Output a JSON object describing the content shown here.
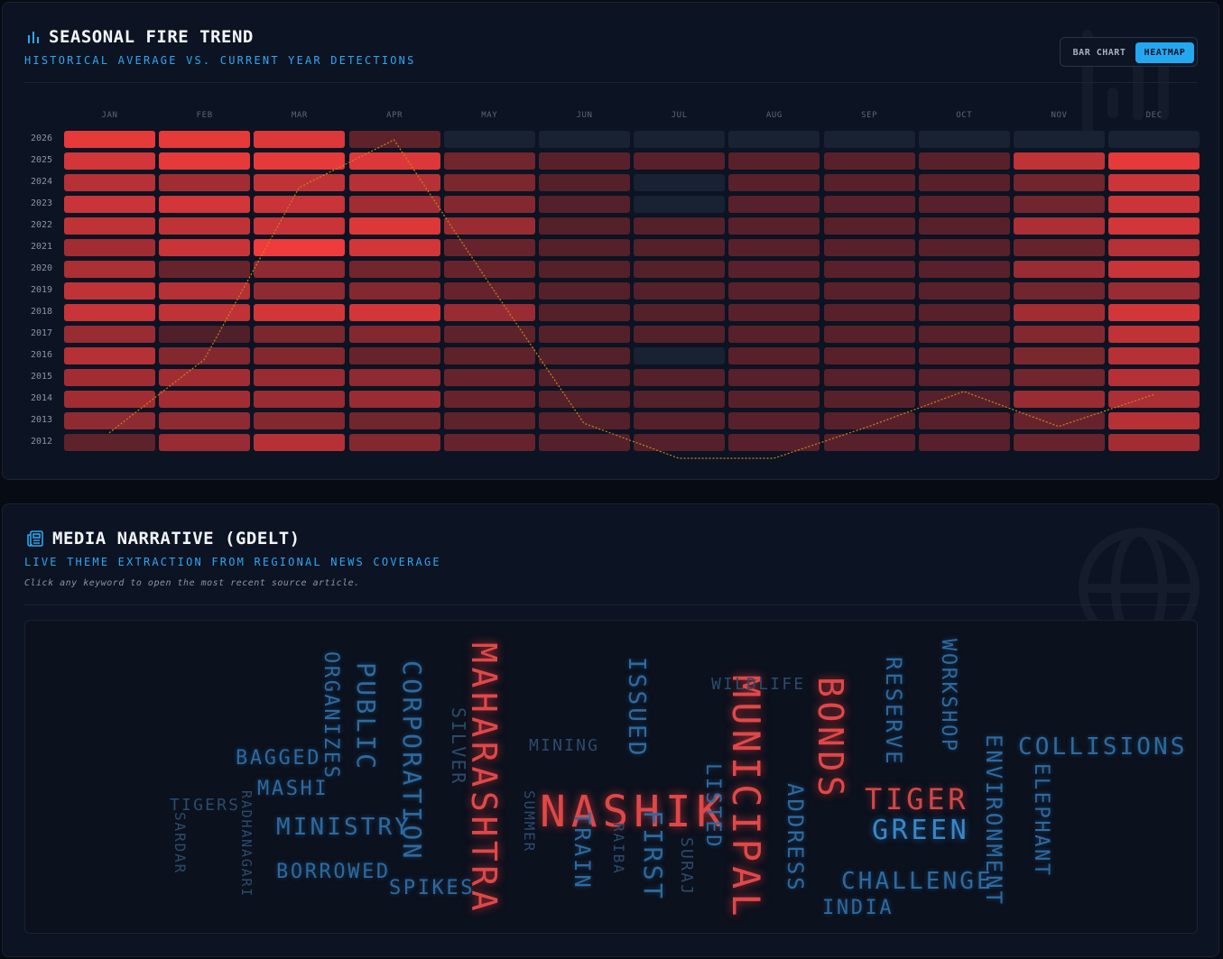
{
  "fire": {
    "title": "SEASONAL FIRE TREND",
    "subtitle": "HISTORICAL AVERAGE VS. CURRENT YEAR DETECTIONS",
    "toggle": {
      "bar_chart": "BAR CHART",
      "heatmap": "HEATMAP",
      "active": "HEATMAP"
    },
    "colors": {
      "accent": "#23a8f0",
      "fire": "#ef3b3b",
      "empty": "#182232",
      "trend_line": "#c8861b"
    }
  },
  "chart_data": {
    "type": "heatmap",
    "x": [
      "JAN",
      "FEB",
      "MAR",
      "APR",
      "MAY",
      "JUN",
      "JUL",
      "AUG",
      "SEP",
      "OCT",
      "NOV",
      "DEC"
    ],
    "y": [
      "2026",
      "2025",
      "2024",
      "2023",
      "2022",
      "2021",
      "2020",
      "2019",
      "2018",
      "2017",
      "2016",
      "2015",
      "2014",
      "2013",
      "2012"
    ],
    "intensity": [
      [
        0.95,
        0.95,
        0.9,
        0.25,
        0,
        0,
        0,
        0,
        0,
        0,
        0,
        0
      ],
      [
        0.85,
        0.95,
        0.95,
        0.9,
        0.35,
        0.22,
        0.22,
        0.22,
        0.22,
        0.22,
        0.75,
        0.95
      ],
      [
        0.7,
        0.6,
        0.75,
        0.7,
        0.4,
        0.2,
        0,
        0.22,
        0.22,
        0.22,
        0.35,
        0.82
      ],
      [
        0.8,
        0.85,
        0.8,
        0.6,
        0.45,
        0.2,
        0,
        0.22,
        0.22,
        0.22,
        0.35,
        0.82
      ],
      [
        0.75,
        0.75,
        0.8,
        0.9,
        0.55,
        0.2,
        0.2,
        0.22,
        0.22,
        0.22,
        0.65,
        0.85
      ],
      [
        0.6,
        0.8,
        1.0,
        0.85,
        0.3,
        0.2,
        0.2,
        0.22,
        0.22,
        0.22,
        0.3,
        0.7
      ],
      [
        0.65,
        0.3,
        0.5,
        0.35,
        0.3,
        0.2,
        0.2,
        0.22,
        0.22,
        0.22,
        0.55,
        0.8
      ],
      [
        0.75,
        0.7,
        0.5,
        0.45,
        0.3,
        0.2,
        0.2,
        0.22,
        0.22,
        0.22,
        0.35,
        0.55
      ],
      [
        0.8,
        0.75,
        0.85,
        0.85,
        0.55,
        0.2,
        0.2,
        0.22,
        0.22,
        0.22,
        0.6,
        0.85
      ],
      [
        0.55,
        0.18,
        0.4,
        0.45,
        0.25,
        0.2,
        0.2,
        0.22,
        0.22,
        0.22,
        0.45,
        0.75
      ],
      [
        0.7,
        0.45,
        0.45,
        0.3,
        0.25,
        0.2,
        0,
        0.22,
        0.22,
        0.22,
        0.4,
        0.7
      ],
      [
        0.6,
        0.6,
        0.55,
        0.5,
        0.3,
        0.2,
        0.2,
        0.22,
        0.22,
        0.22,
        0.35,
        0.7
      ],
      [
        0.6,
        0.6,
        0.55,
        0.55,
        0.3,
        0.2,
        0.2,
        0.22,
        0.22,
        0.22,
        0.55,
        0.65
      ],
      [
        0.5,
        0.5,
        0.45,
        0.35,
        0.25,
        0.2,
        0.2,
        0.22,
        0.22,
        0.22,
        0.3,
        0.7
      ],
      [
        0.25,
        0.55,
        0.7,
        0.45,
        0.3,
        0.2,
        0.2,
        0.22,
        0.22,
        0.22,
        0.3,
        0.6
      ]
    ],
    "trend": {
      "values": [
        0.08,
        0.31,
        0.85,
        1.0,
        0.55,
        0.11,
        0.0,
        0.0,
        0.1,
        0.21,
        0.1,
        0.2
      ]
    }
  },
  "media": {
    "title": "MEDIA NARRATIVE (GDELT)",
    "subtitle": "LIVE THEME EXTRACTION FROM REGIONAL NEWS COVERAGE",
    "note": "Click any keyword to open the most recent source article.",
    "words": [
      {
        "text": "MAHARASHTRA"
      },
      {
        "text": "NASHIK"
      },
      {
        "text": "MUNICIPAL"
      },
      {
        "text": "BONDS"
      },
      {
        "text": "TIGER"
      },
      {
        "text": "GREEN"
      },
      {
        "text": "COLLISIONS"
      },
      {
        "text": "CHALLENGE"
      },
      {
        "text": "CORPORATION"
      },
      {
        "text": "PUBLIC"
      },
      {
        "text": "MINISTRY"
      },
      {
        "text": "ORGANIZES"
      },
      {
        "text": "BAGGED"
      },
      {
        "text": "MASHI"
      },
      {
        "text": "TIGERS"
      },
      {
        "text": "SARDAR"
      },
      {
        "text": "RADHANAGARI"
      },
      {
        "text": "BORROWED"
      },
      {
        "text": "SPIKES"
      },
      {
        "text": "SILVER"
      },
      {
        "text": "MINING"
      },
      {
        "text": "SUMMER"
      },
      {
        "text": "TRAIN"
      },
      {
        "text": "RAIBA"
      },
      {
        "text": "FIRST"
      },
      {
        "text": "SURAJ"
      },
      {
        "text": "LISTED"
      },
      {
        "text": "ISSUED"
      },
      {
        "text": "WILDLIFE"
      },
      {
        "text": "ADDRESS"
      },
      {
        "text": "RESERVE"
      },
      {
        "text": "WORKSHOP"
      },
      {
        "text": "ENVIRONMENT"
      },
      {
        "text": "ELEPHANT"
      },
      {
        "text": "INDIA"
      }
    ]
  }
}
